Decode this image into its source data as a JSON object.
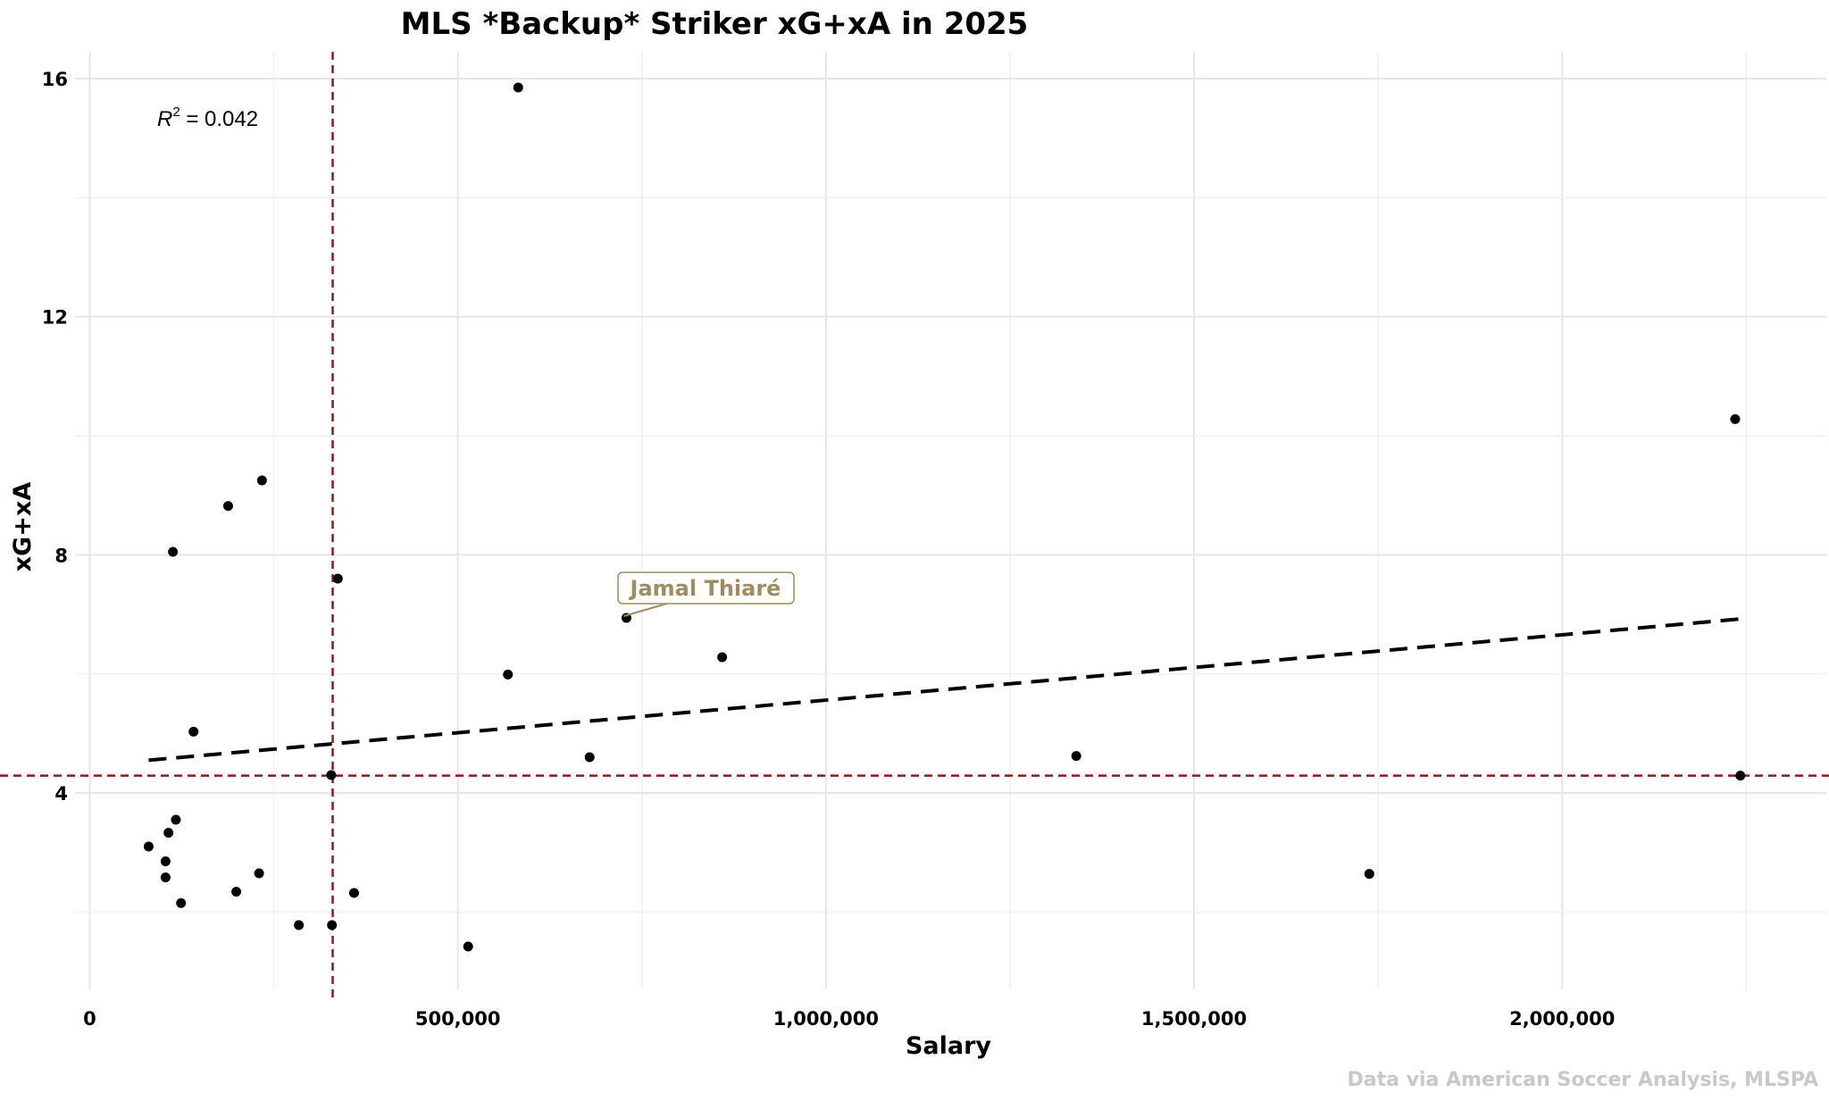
{
  "chart_data": {
    "type": "scatter",
    "title": "MLS *Backup* Striker xG+xA in 2025",
    "xlabel": "Salary",
    "ylabel": "xG+xA",
    "caption": "Data via American Soccer Analysis, MLSPA",
    "xlim": [
      -20000,
      2360000
    ],
    "ylim": [
      0.7,
      16.6
    ],
    "x_ticks": [
      0,
      500000,
      1000000,
      1500000,
      2000000
    ],
    "x_tick_labels": [
      "0",
      "500,000",
      "1,000,000",
      "1,500,000",
      "2,000,000"
    ],
    "y_ticks": [
      4,
      8,
      12,
      16
    ],
    "y_tick_labels": [
      "4",
      "8",
      "12",
      "16"
    ],
    "grid": true,
    "annotation": {
      "r2_label": "R",
      "r2_exponent": "2",
      "r2_value": " = 0.042"
    },
    "highlight": {
      "label": "Jamal Thiaré",
      "x": 729000,
      "y": 6.94,
      "color": "#a08c64"
    },
    "reference_lines": {
      "vline_x": 330000,
      "hline_y": 4.29,
      "color": "#8b1a1a"
    },
    "trend_line": {
      "x": [
        80000,
        2240000
      ],
      "y": [
        4.55,
        6.92
      ]
    },
    "points": [
      {
        "x": 80000,
        "y": 3.1
      },
      {
        "x": 103000,
        "y": 2.85
      },
      {
        "x": 103000,
        "y": 2.58
      },
      {
        "x": 107000,
        "y": 3.33
      },
      {
        "x": 113000,
        "y": 8.05
      },
      {
        "x": 117000,
        "y": 3.55
      },
      {
        "x": 124000,
        "y": 2.15
      },
      {
        "x": 141000,
        "y": 5.03
      },
      {
        "x": 188000,
        "y": 8.82
      },
      {
        "x": 199000,
        "y": 2.34
      },
      {
        "x": 230000,
        "y": 2.65
      },
      {
        "x": 234000,
        "y": 9.25
      },
      {
        "x": 284000,
        "y": 1.78
      },
      {
        "x": 328000,
        "y": 4.3
      },
      {
        "x": 329000,
        "y": 1.78
      },
      {
        "x": 337000,
        "y": 7.6
      },
      {
        "x": 359000,
        "y": 2.32
      },
      {
        "x": 514000,
        "y": 1.42
      },
      {
        "x": 568000,
        "y": 5.99
      },
      {
        "x": 582000,
        "y": 15.85
      },
      {
        "x": 679000,
        "y": 4.6
      },
      {
        "x": 729000,
        "y": 6.94
      },
      {
        "x": 859000,
        "y": 6.28
      },
      {
        "x": 1340000,
        "y": 4.62
      },
      {
        "x": 1738000,
        "y": 2.64
      },
      {
        "x": 2235000,
        "y": 10.28
      },
      {
        "x": 2242000,
        "y": 4.29
      }
    ]
  }
}
